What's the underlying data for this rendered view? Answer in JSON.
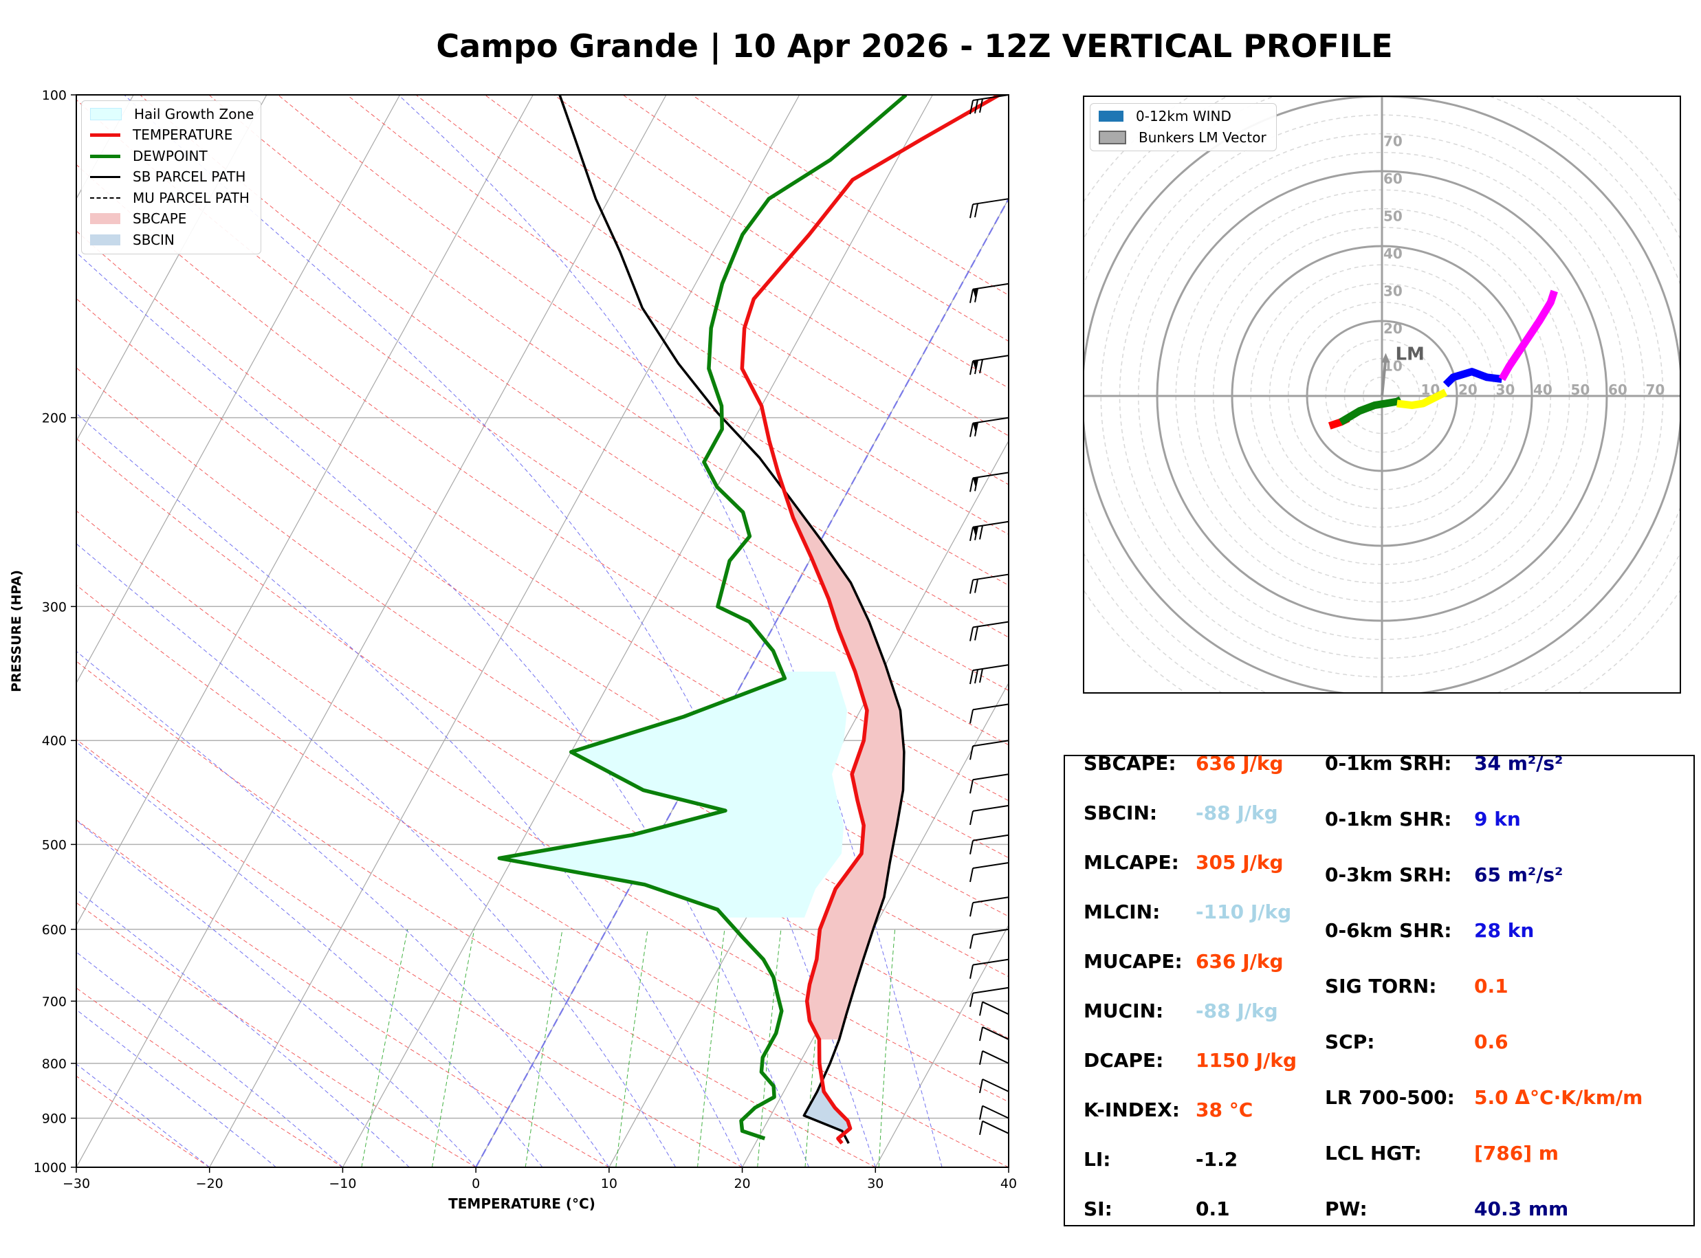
{
  "title": "Campo Grande | 10 Apr 2026 - 12Z VERTICAL PROFILE",
  "skewt": {
    "xlabel": "TEMPERATURE (°C)",
    "ylabel": "PRESSURE (HPA)",
    "x_ticks": [
      "−30",
      "−20",
      "−10",
      "0",
      "10",
      "20",
      "30",
      "40"
    ],
    "y_ticks": [
      "100",
      "200",
      "300",
      "400",
      "500",
      "600",
      "700",
      "800",
      "900",
      "1000"
    ],
    "legend": {
      "hail": "Hail Growth Zone",
      "temperature": "TEMPERATURE",
      "dewpoint": "DEWPOINT",
      "sb_parcel": "SB PARCEL PATH",
      "mu_parcel": "MU PARCEL PATH",
      "sbcape": "SBCAPE",
      "sbcin": "SBCIN"
    },
    "colors": {
      "temperature": "#ee1111",
      "dewpoint": "#0a800a",
      "parcel": "#000000",
      "sbcape": "#f4c6c6",
      "sbcin": "#c6d9ea",
      "hail": "#e0ffff"
    }
  },
  "hodograph": {
    "legend": {
      "wind": "0-12km WIND",
      "bunkers": "Bunkers LM Vector"
    },
    "lm_label": "LM",
    "ring_labels": [
      "10",
      "20",
      "30",
      "40",
      "50",
      "60",
      "70"
    ]
  },
  "stats": {
    "sbcape": {
      "label": "SBCAPE:",
      "value": "636 J/kg"
    },
    "sbcin": {
      "label": "SBCIN:",
      "value": "-88 J/kg"
    },
    "mlcape": {
      "label": "MLCAPE:",
      "value": "305 J/kg"
    },
    "mlcin": {
      "label": "MLCIN:",
      "value": "-110 J/kg"
    },
    "mucape": {
      "label": "MUCAPE:",
      "value": "636 J/kg"
    },
    "mucin": {
      "label": "MUCIN:",
      "value": "-88 J/kg"
    },
    "dcape": {
      "label": "DCAPE:",
      "value": "1150 J/kg"
    },
    "kindex": {
      "label": "K-INDEX:",
      "value": "38 °C"
    },
    "li": {
      "label": "LI:",
      "value": "-1.2"
    },
    "si": {
      "label": "SI:",
      "value": "0.1"
    },
    "srh01": {
      "label": "0-1km SRH:",
      "value": "34 m²/s²"
    },
    "shr01": {
      "label": "0-1km SHR:",
      "value": "9 kn"
    },
    "srh03": {
      "label": "0-3km SRH:",
      "value": "65 m²/s²"
    },
    "shr06": {
      "label": "0-6km SHR:",
      "value": "28 kn"
    },
    "sigtorn": {
      "label": "SIG TORN:",
      "value": "0.1"
    },
    "scp": {
      "label": "SCP:",
      "value": "0.6"
    },
    "lr": {
      "label": "LR 700-500:",
      "value": "5.0 Δ°C·K/km/m"
    },
    "lcl": {
      "label": "LCL HGT:",
      "value": "[786] m"
    },
    "pw": {
      "label": "PW:",
      "value": "40.3 mm"
    }
  },
  "stat_colors": {
    "warm": "#ff4500",
    "cool": "#a8d4e6",
    "blue": "#1010e0",
    "navy": "#000080",
    "black": "#000000"
  },
  "chart_data": [
    {
      "type": "line",
      "chart": "skew-T log-P",
      "x_axis": "temperature °C",
      "y_axis": "pressure hPa (log, inverted)",
      "xlim": [
        -30,
        40
      ],
      "ylim": [
        1000,
        100
      ],
      "temperature": [
        [
          26.5,
          950
        ],
        [
          26,
          940
        ],
        [
          26.5,
          920
        ],
        [
          26,
          905
        ],
        [
          24.5,
          880
        ],
        [
          23,
          850
        ],
        [
          21.5,
          800
        ],
        [
          20.5,
          760
        ],
        [
          19,
          730
        ],
        [
          18,
          700
        ],
        [
          17.5,
          675
        ],
        [
          17,
          640
        ],
        [
          16,
          600
        ],
        [
          15.5,
          550
        ],
        [
          16,
          510
        ],
        [
          15,
          480
        ],
        [
          13.5,
          455
        ],
        [
          12,
          430
        ],
        [
          11.5,
          400
        ],
        [
          10.5,
          375
        ],
        [
          8,
          345
        ],
        [
          5,
          315
        ],
        [
          3,
          295
        ],
        [
          0,
          270
        ],
        [
          -3,
          248
        ],
        [
          -6,
          225
        ],
        [
          -8,
          210
        ],
        [
          -10,
          195
        ],
        [
          -13,
          180
        ],
        [
          -14.5,
          165
        ],
        [
          -15,
          155
        ],
        [
          -13.5,
          135
        ],
        [
          -12.5,
          120
        ],
        [
          -9,
          110
        ],
        [
          -5,
          100
        ]
      ],
      "dewpoint": [
        [
          20.5,
          940
        ],
        [
          18.5,
          925
        ],
        [
          18,
          905
        ],
        [
          18.5,
          880
        ],
        [
          19.5,
          860
        ],
        [
          19,
          840
        ],
        [
          17.5,
          815
        ],
        [
          17,
          790
        ],
        [
          17,
          750
        ],
        [
          16.5,
          715
        ],
        [
          15.5,
          690
        ],
        [
          14.5,
          665
        ],
        [
          13,
          640
        ],
        [
          10.5,
          610
        ],
        [
          7.5,
          575
        ],
        [
          1,
          545
        ],
        [
          -11,
          515
        ],
        [
          -2,
          490
        ],
        [
          4,
          465
        ],
        [
          -3,
          445
        ],
        [
          -10,
          410
        ],
        [
          -3,
          380
        ],
        [
          3,
          350
        ],
        [
          1,
          330
        ],
        [
          -2,
          310
        ],
        [
          -5,
          300
        ],
        [
          -6,
          272
        ],
        [
          -5.5,
          258
        ],
        [
          -7,
          245
        ],
        [
          -10,
          232
        ],
        [
          -12,
          220
        ],
        [
          -12,
          205
        ],
        [
          -13,
          195
        ],
        [
          -15.5,
          180
        ],
        [
          -17,
          165
        ],
        [
          -18,
          150
        ],
        [
          -18.5,
          135
        ],
        [
          -18,
          125
        ],
        [
          -15,
          115
        ],
        [
          -12,
          100
        ]
      ],
      "sb_parcel": [
        [
          27,
          950
        ],
        [
          26,
          925
        ],
        [
          22.5,
          895
        ],
        [
          22.5,
          850
        ],
        [
          22.3,
          800
        ],
        [
          22,
          760
        ],
        [
          21.5,
          720
        ],
        [
          21,
          680
        ],
        [
          20.5,
          640
        ],
        [
          20,
          600
        ],
        [
          19.5,
          560
        ],
        [
          18.5,
          520
        ],
        [
          17.5,
          480
        ],
        [
          16.5,
          445
        ],
        [
          15,
          410
        ],
        [
          13,
          375
        ],
        [
          10,
          340
        ],
        [
          7,
          310
        ],
        [
          4,
          285
        ],
        [
          0,
          260
        ],
        [
          -4,
          238
        ],
        [
          -8,
          218
        ],
        [
          -13,
          198
        ],
        [
          -18,
          178
        ],
        [
          -23,
          158
        ],
        [
          -27,
          140
        ],
        [
          -31,
          125
        ],
        [
          -35,
          110
        ],
        [
          -38,
          100
        ]
      ],
      "hail_growth_zone_hPa": [
        345,
        585
      ],
      "lcl_hPa": 895
    },
    {
      "type": "line",
      "chart": "hodograph",
      "units": "kt",
      "ring_values": [
        10,
        20,
        30,
        40,
        50,
        60,
        70
      ],
      "segments": [
        {
          "color": "#ff0000",
          "points": [
            [
              -14,
              -8
            ],
            [
              -11,
              -7
            ],
            [
              -9,
              -6
            ]
          ]
        },
        {
          "color": "#0a800a",
          "points": [
            [
              -11,
              -7
            ],
            [
              -6,
              -4
            ],
            [
              -2,
              -2.5
            ],
            [
              1,
              -2
            ],
            [
              4,
              -1.5
            ],
            [
              5,
              -1
            ]
          ]
        },
        {
          "color": "#ffff00",
          "points": [
            [
              4,
              -2
            ],
            [
              8,
              -2.5
            ],
            [
              11,
              -2
            ],
            [
              14,
              -0.5
            ],
            [
              17,
              1
            ]
          ]
        },
        {
          "color": "#0000ff",
          "points": [
            [
              17,
              3
            ],
            [
              19,
              5
            ],
            [
              24,
              6.5
            ],
            [
              28,
              5
            ],
            [
              32,
              4.5
            ]
          ]
        },
        {
          "color": "#ff00ff",
          "points": [
            [
              32,
              4.5
            ],
            [
              34,
              8
            ],
            [
              38,
              14
            ],
            [
              42,
              20
            ],
            [
              45,
              25
            ],
            [
              46,
              28
            ]
          ]
        }
      ],
      "bunkers_lm": [
        1,
        10
      ]
    }
  ]
}
